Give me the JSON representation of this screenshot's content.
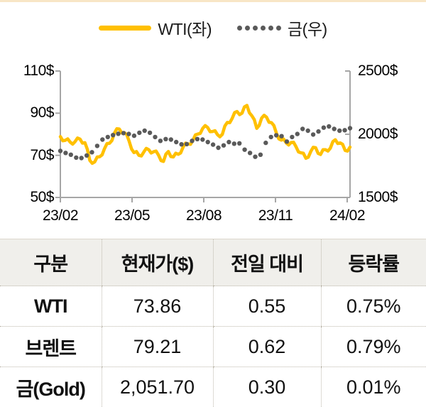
{
  "page": {
    "top_border_color": "#F8E6C6"
  },
  "legend": {
    "items": [
      {
        "label": "WTI(좌)",
        "type": "line",
        "color": "#FFC000"
      },
      {
        "label": "금(우)",
        "type": "dotted",
        "color": "#5A5A5A"
      }
    ]
  },
  "chart_data": {
    "type": "line",
    "title": "",
    "grid": false,
    "legend_position": "top-center",
    "axis_color": "#A6A6A6",
    "x_axis": {
      "tick_labels": [
        "23/02",
        "23/05",
        "23/08",
        "23/11",
        "24/02"
      ]
    },
    "left_axis": {
      "min": 50,
      "max": 110,
      "tick_values": [
        110,
        90,
        70,
        50
      ],
      "tick_labels": [
        "110$",
        "90$",
        "70$",
        "50$"
      ]
    },
    "right_axis": {
      "min": 1500,
      "max": 2500,
      "tick_values": [
        2500,
        2000,
        1500
      ],
      "tick_labels": [
        "2500$",
        "2000$",
        "1500$"
      ]
    },
    "series": [
      {
        "name": "WTI(좌)",
        "axis": "left",
        "style": "solid",
        "color": "#FFC000",
        "values": [
          78.9,
          76.9,
          77.1,
          77.8,
          76.3,
          75.3,
          76.5,
          78.2,
          77.7,
          75.8,
          76.0,
          72.9,
          67.6,
          66.2,
          66.9,
          69.2,
          69.3,
          70.2,
          73.2,
          75.6,
          75.7,
          77.0,
          80.5,
          82.6,
          82.5,
          80.6,
          80.8,
          79.9,
          76.8,
          73.0,
          71.3,
          71.8,
          70.0,
          69.7,
          71.6,
          73.3,
          72.7,
          71.1,
          71.7,
          72.0,
          70.1,
          67.5,
          67.1,
          70.6,
          71.8,
          69.4,
          69.2,
          71.0,
          70.5,
          71.1,
          73.9,
          75.8,
          75.4,
          75.2,
          77.1,
          79.7,
          80.1,
          80.4,
          82.8,
          84.1,
          83.2,
          81.2,
          81.3,
          81.7,
          79.8,
          78.8,
          80.0,
          83.9,
          85.6,
          85.5,
          87.5,
          90.3,
          90.8,
          89.3,
          90.0,
          93.0,
          93.7,
          90.2,
          88.8,
          86.9,
          82.8,
          84.2,
          87.7,
          89.0,
          88.1,
          85.7,
          85.5,
          84.1,
          80.5,
          77.8,
          77.2,
          77.7,
          75.9,
          74.9,
          76.1,
          76.2,
          74.1,
          71.6,
          71.2,
          71.0,
          68.6,
          69.1,
          71.8,
          73.8,
          73.6,
          70.9,
          70.4,
          72.7,
          72.7,
          72.0,
          73.4,
          76.5,
          77.4,
          75.6,
          75.9,
          75.2,
          72.3,
          72.0,
          73.9
        ]
      },
      {
        "name": "금(우)",
        "axis": "right",
        "style": "dotted",
        "color": "#5A5A5A",
        "values": [
          1868,
          1852,
          1838,
          1815,
          1812,
          1832,
          1858,
          1908,
          1958,
          1978,
          1993,
          2004,
          2009,
          2002,
          1988,
          2012,
          2028,
          2012,
          1978,
          1948,
          1962,
          1958,
          1938,
          1920,
          1922,
          1948,
          1962,
          1958,
          1938,
          1918,
          1893,
          1912,
          1938,
          1925,
          1928,
          1878,
          1852,
          1822,
          1838,
          1932,
          1978,
          1992,
          1985,
          1942,
          1978,
          2002,
          2042,
          2028,
          1998,
          2022,
          2052,
          2062,
          2042,
          2028,
          2032,
          2048
        ]
      }
    ]
  },
  "table": {
    "columns": [
      "구분",
      "현재가($)",
      "전일 대비",
      "등락률"
    ],
    "rows": [
      {
        "name": "WTI",
        "price": "73.86",
        "change": "0.55",
        "pct": "0.75%"
      },
      {
        "name": "브렌트",
        "price": "79.21",
        "change": "0.62",
        "pct": "0.79%"
      },
      {
        "name": "금(Gold)",
        "price": "2,051.70",
        "change": "0.30",
        "pct": "0.01%"
      }
    ]
  }
}
